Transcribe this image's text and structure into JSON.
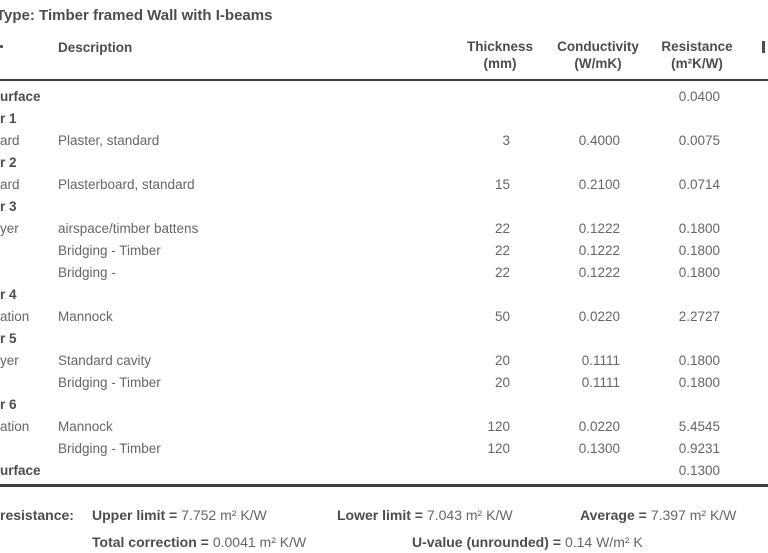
{
  "title": "Type: Timber framed Wall with I-beams",
  "colors": {
    "background": "#ffffff",
    "text": "#646668",
    "text_bold": "#4b4d4f",
    "rule": "#3e3f41"
  },
  "table": {
    "header": {
      "description": "Description",
      "columns": [
        {
          "label": "Thickness",
          "unit": "(mm)"
        },
        {
          "label": "Conductivity",
          "unit": "(W/mK)"
        },
        {
          "label": "Resistance",
          "unit": "(m²K/W)"
        }
      ]
    },
    "rows": [
      {
        "label": "urface",
        "label_bold": true,
        "description": "",
        "thickness": "",
        "conductivity": "",
        "resistance": "0.0400"
      },
      {
        "label": "r 1",
        "label_bold": true,
        "description": "",
        "thickness": "",
        "conductivity": "",
        "resistance": ""
      },
      {
        "label": "ard",
        "label_bold": false,
        "description": "Plaster, standard",
        "thickness": "3",
        "conductivity": "0.4000",
        "resistance": "0.0075"
      },
      {
        "label": "r 2",
        "label_bold": true,
        "description": "",
        "thickness": "",
        "conductivity": "",
        "resistance": ""
      },
      {
        "label": "ard",
        "label_bold": false,
        "description": "Plasterboard, standard",
        "thickness": "15",
        "conductivity": "0.2100",
        "resistance": "0.0714"
      },
      {
        "label": "r 3",
        "label_bold": true,
        "description": "",
        "thickness": "",
        "conductivity": "",
        "resistance": ""
      },
      {
        "label": "yer",
        "label_bold": false,
        "description": "airspace/timber battens",
        "thickness": "22",
        "conductivity": "0.1222",
        "resistance": "0.1800"
      },
      {
        "label": "",
        "label_bold": false,
        "description": "Bridging - Timber",
        "thickness": "22",
        "conductivity": "0.1222",
        "resistance": "0.1800"
      },
      {
        "label": "",
        "label_bold": false,
        "description": "Bridging -",
        "thickness": "22",
        "conductivity": "0.1222",
        "resistance": "0.1800"
      },
      {
        "label": "r 4",
        "label_bold": true,
        "description": "",
        "thickness": "",
        "conductivity": "",
        "resistance": ""
      },
      {
        "label": "ation",
        "label_bold": false,
        "description": "Mannock",
        "thickness": "50",
        "conductivity": "0.0220",
        "resistance": "2.2727"
      },
      {
        "label": "r 5",
        "label_bold": true,
        "description": "",
        "thickness": "",
        "conductivity": "",
        "resistance": ""
      },
      {
        "label": "yer",
        "label_bold": false,
        "description": "Standard cavity",
        "thickness": "20",
        "conductivity": "0.1111",
        "resistance": "0.1800"
      },
      {
        "label": "",
        "label_bold": false,
        "description": "Bridging - Timber",
        "thickness": "20",
        "conductivity": "0.1111",
        "resistance": "0.1800"
      },
      {
        "label": "r 6",
        "label_bold": true,
        "description": "",
        "thickness": "",
        "conductivity": "",
        "resistance": ""
      },
      {
        "label": "ation",
        "label_bold": false,
        "description": "Mannock",
        "thickness": "120",
        "conductivity": "0.0220",
        "resistance": "5.4545"
      },
      {
        "label": "",
        "label_bold": false,
        "description": "Bridging - Timber",
        "thickness": "120",
        "conductivity": "0.1300",
        "resistance": "0.9231"
      },
      {
        "label": "urface",
        "label_bold": true,
        "description": "",
        "thickness": "",
        "conductivity": "",
        "resistance": "0.1300"
      }
    ]
  },
  "summary": {
    "label_fragment": "resistance:",
    "upper": {
      "label": "Upper limit =",
      "value": "7.752 m² K/W"
    },
    "lower": {
      "label": "Lower limit =",
      "value": "7.043 m² K/W"
    },
    "average": {
      "label": "Average =",
      "value": "7.397 m² K/W"
    },
    "correction": {
      "label": "Total correction =",
      "value": "0.0041 m² K/W"
    },
    "uvalue": {
      "label": "U-value (unrounded) =",
      "value": "0.14 W/m² K"
    }
  }
}
